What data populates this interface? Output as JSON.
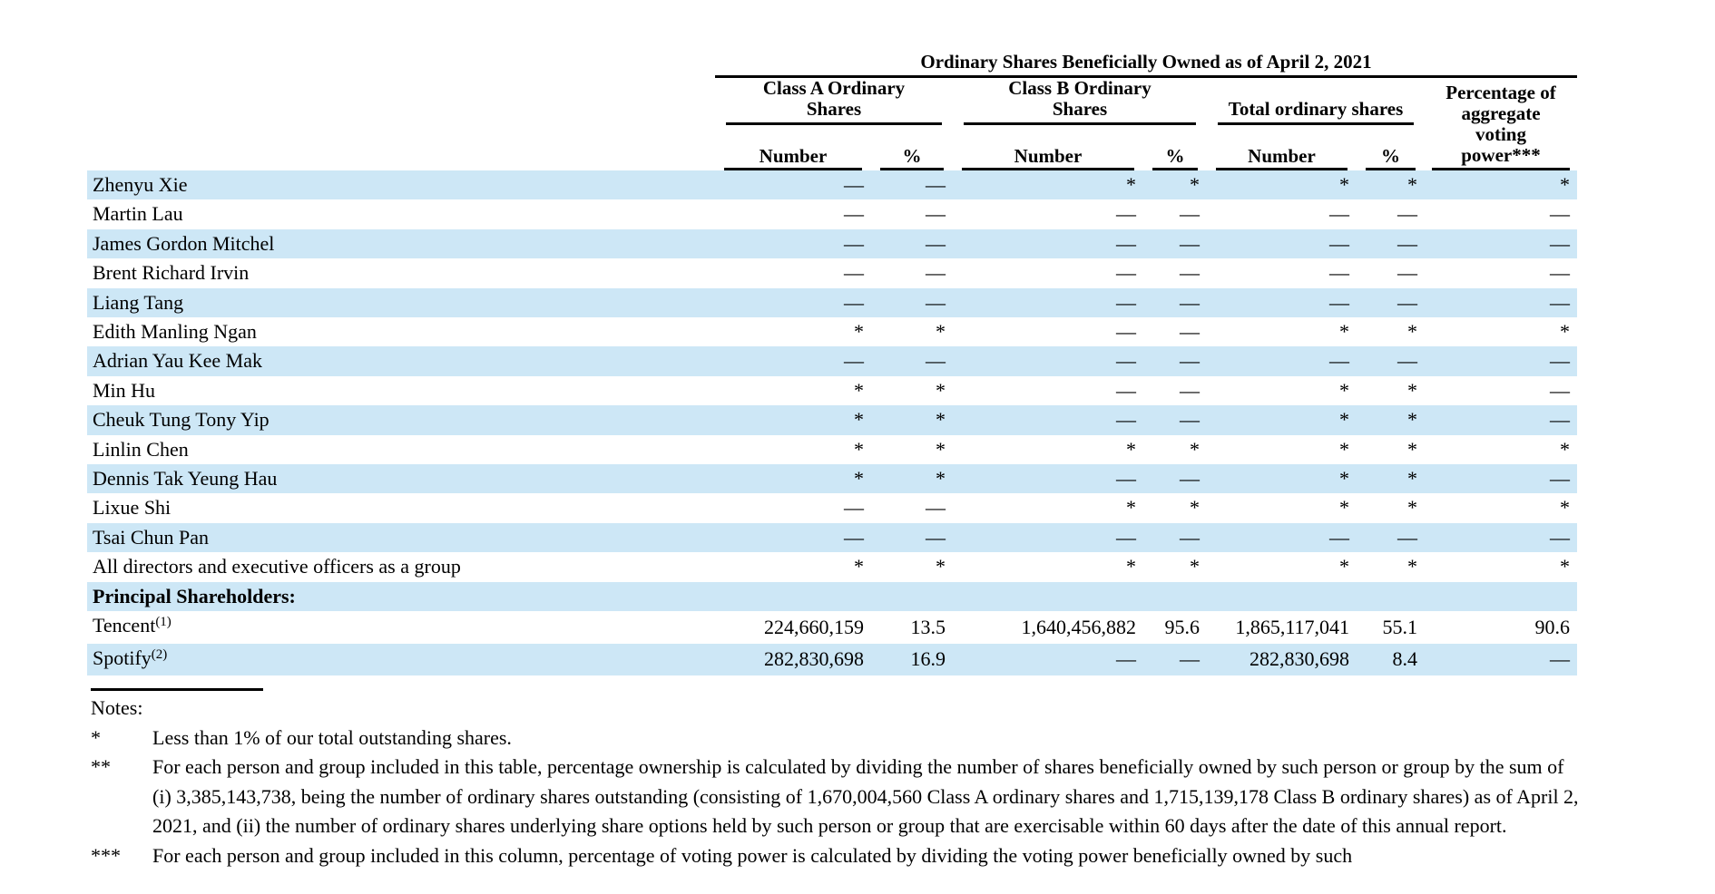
{
  "table": {
    "title": "Ordinary Shares Beneficially Owned as of April 2, 2021",
    "groups": [
      {
        "lines": [
          "Class A Ordinary",
          "Shares"
        ]
      },
      {
        "lines": [
          "Class B Ordinary",
          "Shares"
        ]
      },
      {
        "lines": [
          "Total ordinary shares"
        ]
      },
      {
        "lines": [
          "Percentage of",
          "aggregate",
          "voting",
          "power***"
        ]
      }
    ],
    "subheaders": [
      "Number",
      "%",
      "Number",
      "%",
      "Number",
      "%"
    ],
    "rows": [
      {
        "name": "Zhenyu Xie",
        "values": [
          "—",
          "—",
          "*",
          "*",
          "*",
          "*",
          "*"
        ]
      },
      {
        "name": "Martin Lau",
        "values": [
          "—",
          "—",
          "—",
          "—",
          "—",
          "—",
          "—"
        ]
      },
      {
        "name": "James Gordon Mitchel",
        "values": [
          "—",
          "—",
          "—",
          "—",
          "—",
          "—",
          "—"
        ]
      },
      {
        "name": "Brent Richard Irvin",
        "values": [
          "—",
          "—",
          "—",
          "—",
          "—",
          "—",
          "—"
        ]
      },
      {
        "name": "Liang Tang",
        "values": [
          "—",
          "—",
          "—",
          "—",
          "—",
          "—",
          "—"
        ]
      },
      {
        "name": "Edith Manling Ngan",
        "values": [
          "*",
          "*",
          "—",
          "—",
          "*",
          "*",
          "*"
        ]
      },
      {
        "name": "Adrian Yau Kee Mak",
        "values": [
          "—",
          "—",
          "—",
          "—",
          "—",
          "—",
          "—"
        ]
      },
      {
        "name": "Min Hu",
        "values": [
          "*",
          "*",
          "—",
          "—",
          "*",
          "*",
          "—"
        ]
      },
      {
        "name": "Cheuk Tung Tony Yip",
        "values": [
          "*",
          "*",
          "—",
          "—",
          "*",
          "*",
          "—"
        ]
      },
      {
        "name": "Linlin Chen",
        "values": [
          "*",
          "*",
          "*",
          "*",
          "*",
          "*",
          "*"
        ]
      },
      {
        "name": "Dennis Tak Yeung Hau",
        "values": [
          "*",
          "*",
          "—",
          "—",
          "*",
          "*",
          "—"
        ]
      },
      {
        "name": "Lixue Shi",
        "values": [
          "—",
          "—",
          "*",
          "*",
          "*",
          "*",
          "*"
        ]
      },
      {
        "name": "Tsai Chun Pan",
        "values": [
          "—",
          "—",
          "—",
          "—",
          "—",
          "—",
          "—"
        ]
      },
      {
        "name": "All directors and executive officers as a group",
        "values": [
          "*",
          "*",
          "*",
          "*",
          "*",
          "*",
          "*"
        ]
      },
      {
        "name": "Principal Shareholders:",
        "section": true,
        "values": [
          "",
          "",
          "",
          "",
          "",
          "",
          ""
        ]
      },
      {
        "name": "Tencent",
        "sup": "(1)",
        "values": [
          "224,660,159",
          "13.5",
          "1,640,456,882",
          "95.6",
          "1,865,117,041",
          "55.1",
          "90.6"
        ]
      },
      {
        "name": "Spotify",
        "sup": "(2)",
        "values": [
          "282,830,698",
          "16.9",
          "—",
          "—",
          "282,830,698",
          "8.4",
          "—"
        ]
      }
    ]
  },
  "notes": {
    "title": "Notes:",
    "items": [
      {
        "marker": "*",
        "text": "Less than 1% of our total outstanding shares."
      },
      {
        "marker": "**",
        "text": "For each person and group included in this table, percentage ownership is calculated by dividing the number of shares beneficially owned by such person or group by the sum of (i) 3,385,143,738, being the number of ordinary shares outstanding (consisting of 1,670,004,560 Class A ordinary shares and 1,715,139,178 Class B ordinary shares) as of April 2, 2021, and (ii) the number of ordinary shares underlying share options held by such person or group that are exercisable within 60 days after the date of this annual report."
      },
      {
        "marker": "***",
        "text": "For each person and group included in this column, percentage of voting power is calculated by dividing the voting power beneficially owned by such"
      }
    ]
  },
  "colors": {
    "row_highlight": "#cde7f6",
    "text": "#000000",
    "rule": "#000000"
  }
}
